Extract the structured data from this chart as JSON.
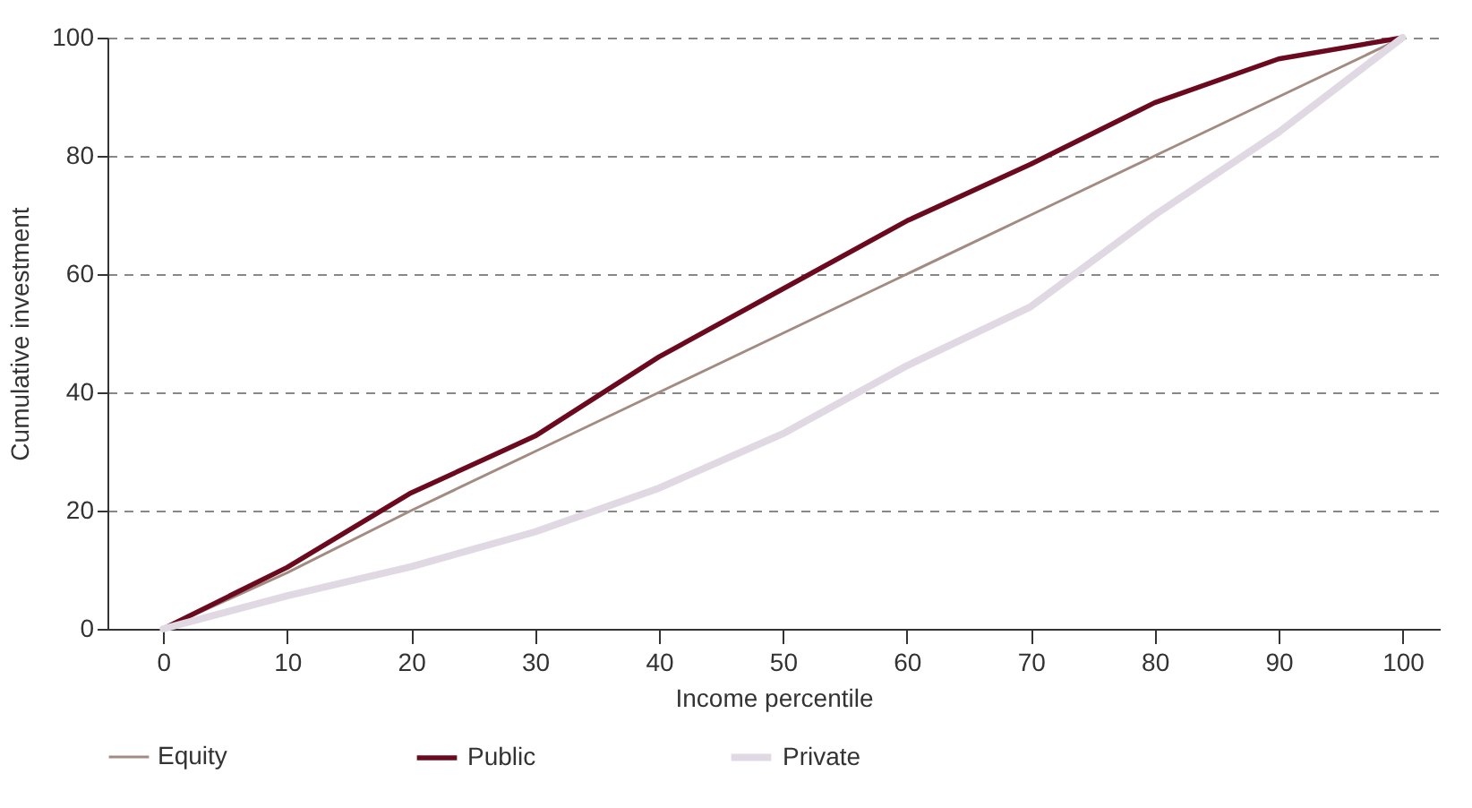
{
  "chart_data": {
    "type": "line",
    "xlabel": "Income percentile",
    "ylabel": "Cumulative investment",
    "x": [
      0,
      10,
      20,
      30,
      40,
      50,
      60,
      70,
      80,
      90,
      100
    ],
    "series": [
      {
        "name": "Equity",
        "color": "#a38b82",
        "values": [
          0,
          9.5,
          20,
          30,
          40,
          50,
          60,
          70,
          80,
          90,
          100
        ]
      },
      {
        "name": "Public",
        "color": "#6b0a1e",
        "values": [
          0,
          10.4,
          23,
          32.6,
          46,
          57.5,
          69,
          78.6,
          89,
          96.4,
          100
        ]
      },
      {
        "name": "Private",
        "color": "#e0d9e4",
        "values": [
          0,
          5.6,
          10.5,
          16.4,
          23.8,
          33,
          44.5,
          54.5,
          70,
          84,
          100
        ]
      }
    ],
    "xlim": [
      -4.5,
      103
    ],
    "xticks": [
      0,
      10,
      20,
      30,
      40,
      50,
      60,
      70,
      80,
      90,
      100
    ],
    "ylim": [
      0,
      100
    ],
    "yticks": [
      0,
      20,
      40,
      60,
      80,
      100
    ],
    "grid": "y",
    "legend": "bottom",
    "marker": "none",
    "line_style": "solid"
  }
}
